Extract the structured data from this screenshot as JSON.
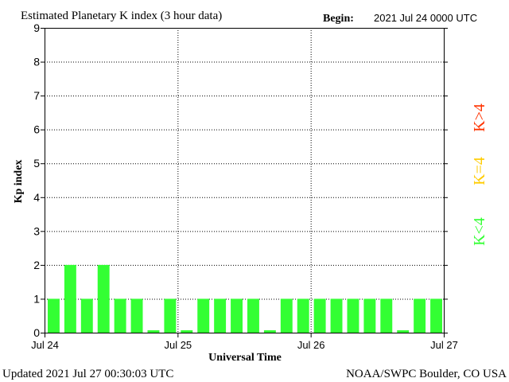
{
  "header": {
    "title": "Estimated Planetary K index (3 hour data)",
    "begin_label": "Begin:",
    "begin_value": "2021 Jul 24 0000 UTC"
  },
  "footer": {
    "updated": "Updated 2021 Jul 27 00:30:03 UTC",
    "source": "NOAA/SWPC Boulder, CO USA"
  },
  "legend": {
    "low": {
      "label": "K<4",
      "color": "#33ff33"
    },
    "mid": {
      "label": "K=4",
      "color": "#ffcc00"
    },
    "high": {
      "label": "K>4",
      "color": "#ff3300"
    }
  },
  "chart_data": {
    "type": "bar",
    "title": "Estimated Planetary K index (3 hour data)",
    "xlabel": "Universal Time",
    "ylabel": "Kp index",
    "ylim": [
      0,
      9
    ],
    "yticks": [
      "0",
      "1",
      "2",
      "3",
      "4",
      "5",
      "6",
      "7",
      "8",
      "9"
    ],
    "xticks": [
      "Jul 24",
      "Jul 25",
      "Jul 26",
      "Jul 27"
    ],
    "grid": true,
    "bar_color": "#33ff33",
    "values": [
      1,
      2,
      1,
      2,
      1,
      1,
      0,
      1,
      0,
      1,
      1,
      1,
      1,
      0,
      1,
      1,
      1,
      1,
      1,
      1,
      1,
      0,
      1,
      1
    ]
  }
}
